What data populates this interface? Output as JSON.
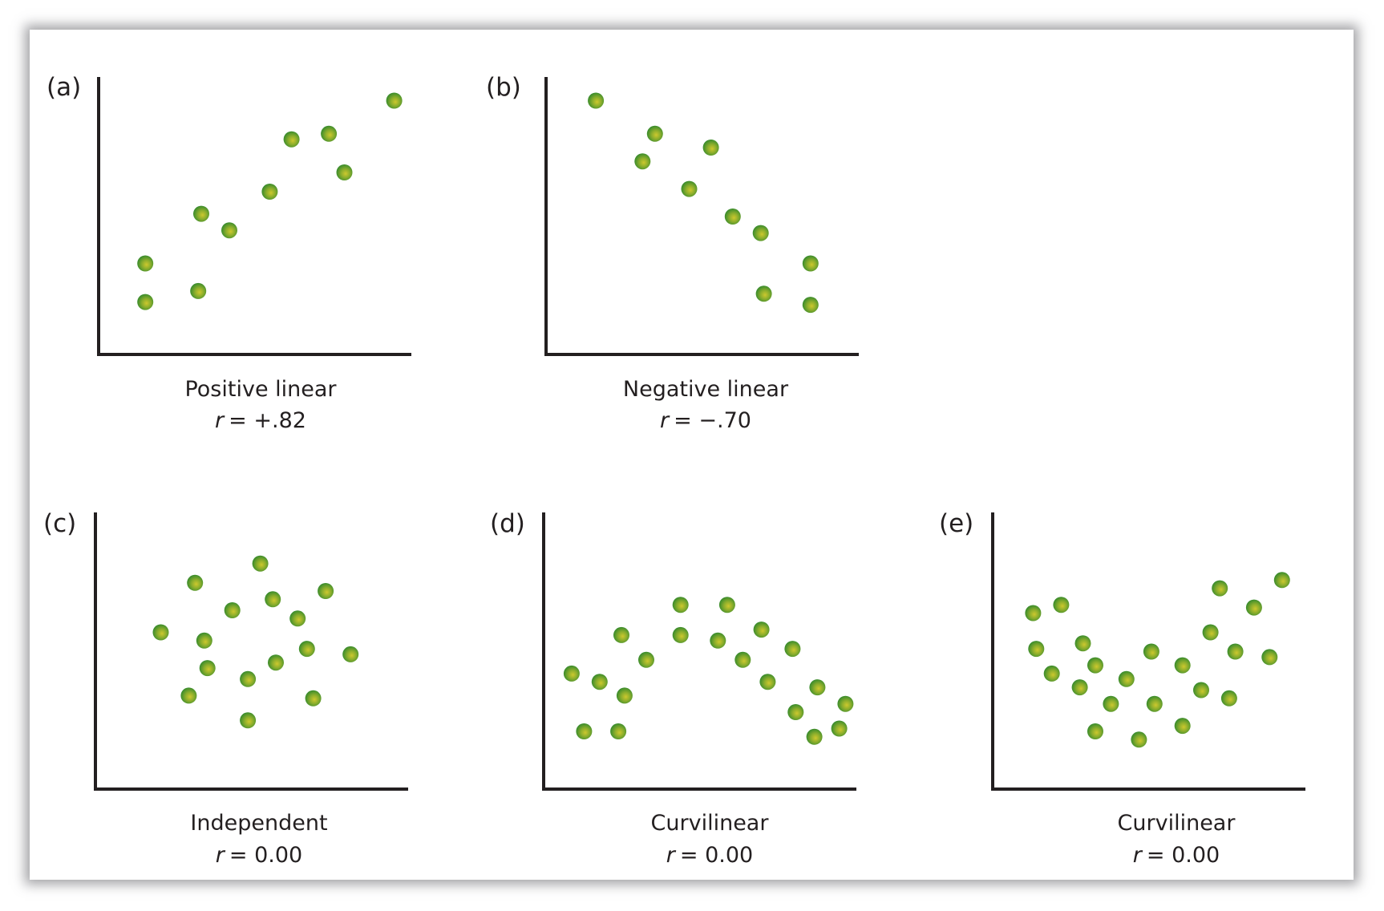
{
  "figure": {
    "panels": [
      {
        "id": "a",
        "letter": "(a)",
        "title": "Positive linear",
        "r_label": "r",
        "r_value": "= +.82"
      },
      {
        "id": "b",
        "letter": "(b)",
        "title": "Negative linear",
        "r_label": "r",
        "r_value": "= −.70"
      },
      {
        "id": "c",
        "letter": "(c)",
        "title": "Independent",
        "r_label": "r",
        "r_value": "= 0.00"
      },
      {
        "id": "d",
        "letter": "(d)",
        "title": "Curvilinear",
        "r_label": "r",
        "r_value": "= 0.00"
      },
      {
        "id": "e",
        "letter": "(e)",
        "title": "Curvilinear",
        "r_label": "r",
        "r_value": "= 0.00"
      }
    ],
    "colors": {
      "axis": "#231f20",
      "dot_center": "#c4c22e",
      "dot_edge": "#2f8a2c",
      "text": "#231f20"
    }
  },
  "chart_data": [
    {
      "type": "scatter",
      "panel": "(a)",
      "title": "Positive linear",
      "annotation": "r = +.82",
      "xlabel": "",
      "ylabel": "",
      "grid": false,
      "xlim": [
        0,
        100
      ],
      "ylim": [
        0,
        100
      ],
      "points": [
        [
          15,
          19
        ],
        [
          15,
          33
        ],
        [
          32,
          23
        ],
        [
          33,
          51
        ],
        [
          42,
          45
        ],
        [
          55,
          59
        ],
        [
          62,
          78
        ],
        [
          79,
          66
        ],
        [
          74,
          80
        ],
        [
          95,
          92
        ]
      ]
    },
    {
      "type": "scatter",
      "panel": "(b)",
      "title": "Negative linear",
      "annotation": "r = −.70",
      "xlabel": "",
      "ylabel": "",
      "grid": false,
      "xlim": [
        0,
        100
      ],
      "ylim": [
        0,
        100
      ],
      "points": [
        [
          16,
          92
        ],
        [
          35,
          80
        ],
        [
          31,
          70
        ],
        [
          53,
          75
        ],
        [
          46,
          60
        ],
        [
          60,
          50
        ],
        [
          69,
          44
        ],
        [
          85,
          33
        ],
        [
          70,
          22
        ],
        [
          85,
          18
        ]
      ]
    },
    {
      "type": "scatter",
      "panel": "(c)",
      "title": "Independent",
      "annotation": "r = 0.00",
      "xlabel": "",
      "ylabel": "",
      "grid": false,
      "xlim": [
        0,
        100
      ],
      "ylim": [
        0,
        100
      ],
      "points": [
        [
          53,
          82
        ],
        [
          32,
          75
        ],
        [
          74,
          72
        ],
        [
          57,
          69
        ],
        [
          44,
          65
        ],
        [
          65,
          62
        ],
        [
          21,
          57
        ],
        [
          35,
          54
        ],
        [
          68,
          51
        ],
        [
          82,
          49
        ],
        [
          58,
          46
        ],
        [
          36,
          44
        ],
        [
          49,
          40
        ],
        [
          30,
          34
        ],
        [
          70,
          33
        ],
        [
          49,
          25
        ]
      ]
    },
    {
      "type": "scatter",
      "panel": "(d)",
      "title": "Curvilinear",
      "annotation": "r = 0.00",
      "xlabel": "",
      "ylabel": "",
      "grid": false,
      "xlim": [
        0,
        100
      ],
      "ylim": [
        0,
        100
      ],
      "points": [
        [
          44,
          67
        ],
        [
          59,
          67
        ],
        [
          25,
          56
        ],
        [
          44,
          56
        ],
        [
          70,
          58
        ],
        [
          56,
          54
        ],
        [
          80,
          51
        ],
        [
          33,
          47
        ],
        [
          64,
          47
        ],
        [
          9,
          42
        ],
        [
          18,
          39
        ],
        [
          72,
          39
        ],
        [
          88,
          37
        ],
        [
          26,
          34
        ],
        [
          97,
          31
        ],
        [
          81,
          28
        ],
        [
          13,
          21
        ],
        [
          24,
          21
        ],
        [
          95,
          22
        ],
        [
          87,
          19
        ]
      ]
    },
    {
      "type": "scatter",
      "panel": "(e)",
      "title": "Curvilinear",
      "annotation": "r = 0.00",
      "xlabel": "",
      "ylabel": "",
      "grid": false,
      "xlim": [
        0,
        100
      ],
      "ylim": [
        0,
        100
      ],
      "points": [
        [
          13,
          64
        ],
        [
          22,
          67
        ],
        [
          14,
          51
        ],
        [
          29,
          53
        ],
        [
          19,
          42
        ],
        [
          33,
          45
        ],
        [
          28,
          37
        ],
        [
          43,
          40
        ],
        [
          38,
          31
        ],
        [
          51,
          50
        ],
        [
          52,
          31
        ],
        [
          33,
          21
        ],
        [
          47,
          18
        ],
        [
          61,
          45
        ],
        [
          61,
          23
        ],
        [
          67,
          36
        ],
        [
          70,
          57
        ],
        [
          76,
          33
        ],
        [
          73,
          73
        ],
        [
          78,
          50
        ],
        [
          84,
          66
        ],
        [
          89,
          48
        ],
        [
          93,
          76
        ]
      ]
    }
  ]
}
